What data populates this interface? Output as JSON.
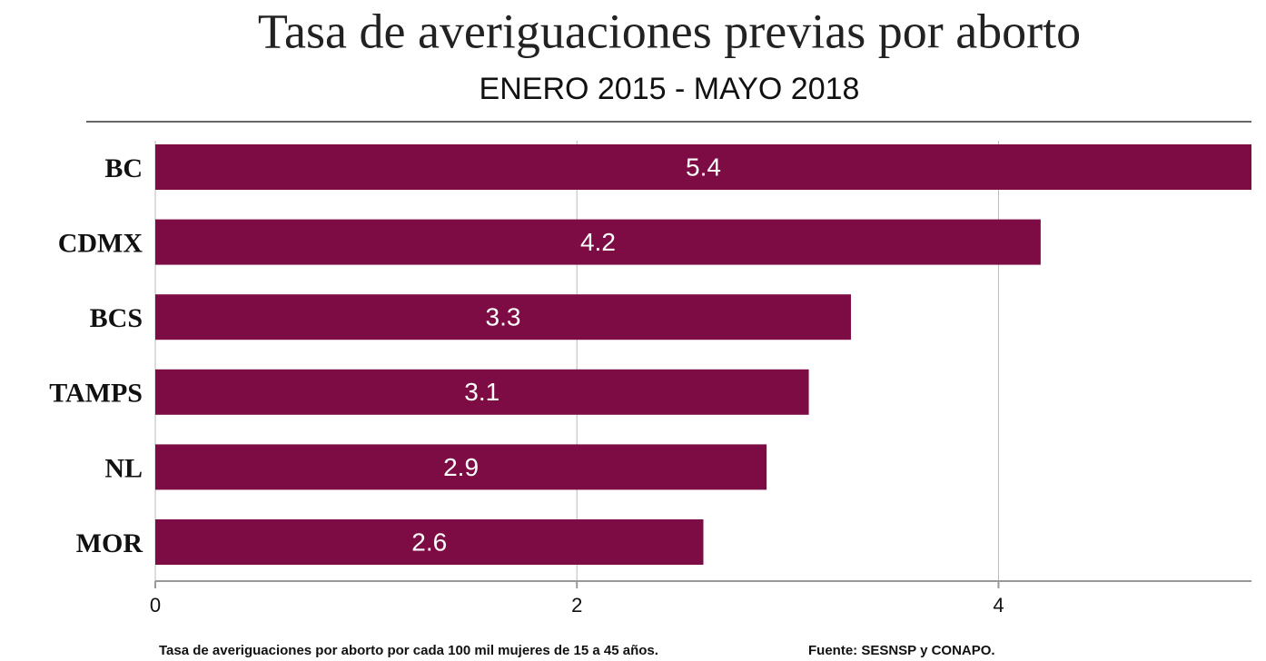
{
  "chart_data": {
    "type": "bar",
    "orientation": "horizontal",
    "title": "Tasa de averiguaciones previas por aborto",
    "subtitle": "ENERO 2015 - MAYO 2018",
    "categories": [
      "BC",
      "CDMX",
      "BCS",
      "TAMPS",
      "NL",
      "MOR"
    ],
    "values": [
      5.4,
      4.2,
      3.3,
      3.1,
      2.9,
      2.6
    ],
    "color": "#7d0c45",
    "xlim": [
      0,
      5.2
    ],
    "xticks": [
      0,
      2,
      4
    ],
    "grid": true,
    "notes": [
      "Tasa de averiguaciones por aborto por cada 100 mil mujeres de 15 a 45 años.",
      "Fuente: SESNSP y CONAPO."
    ]
  }
}
